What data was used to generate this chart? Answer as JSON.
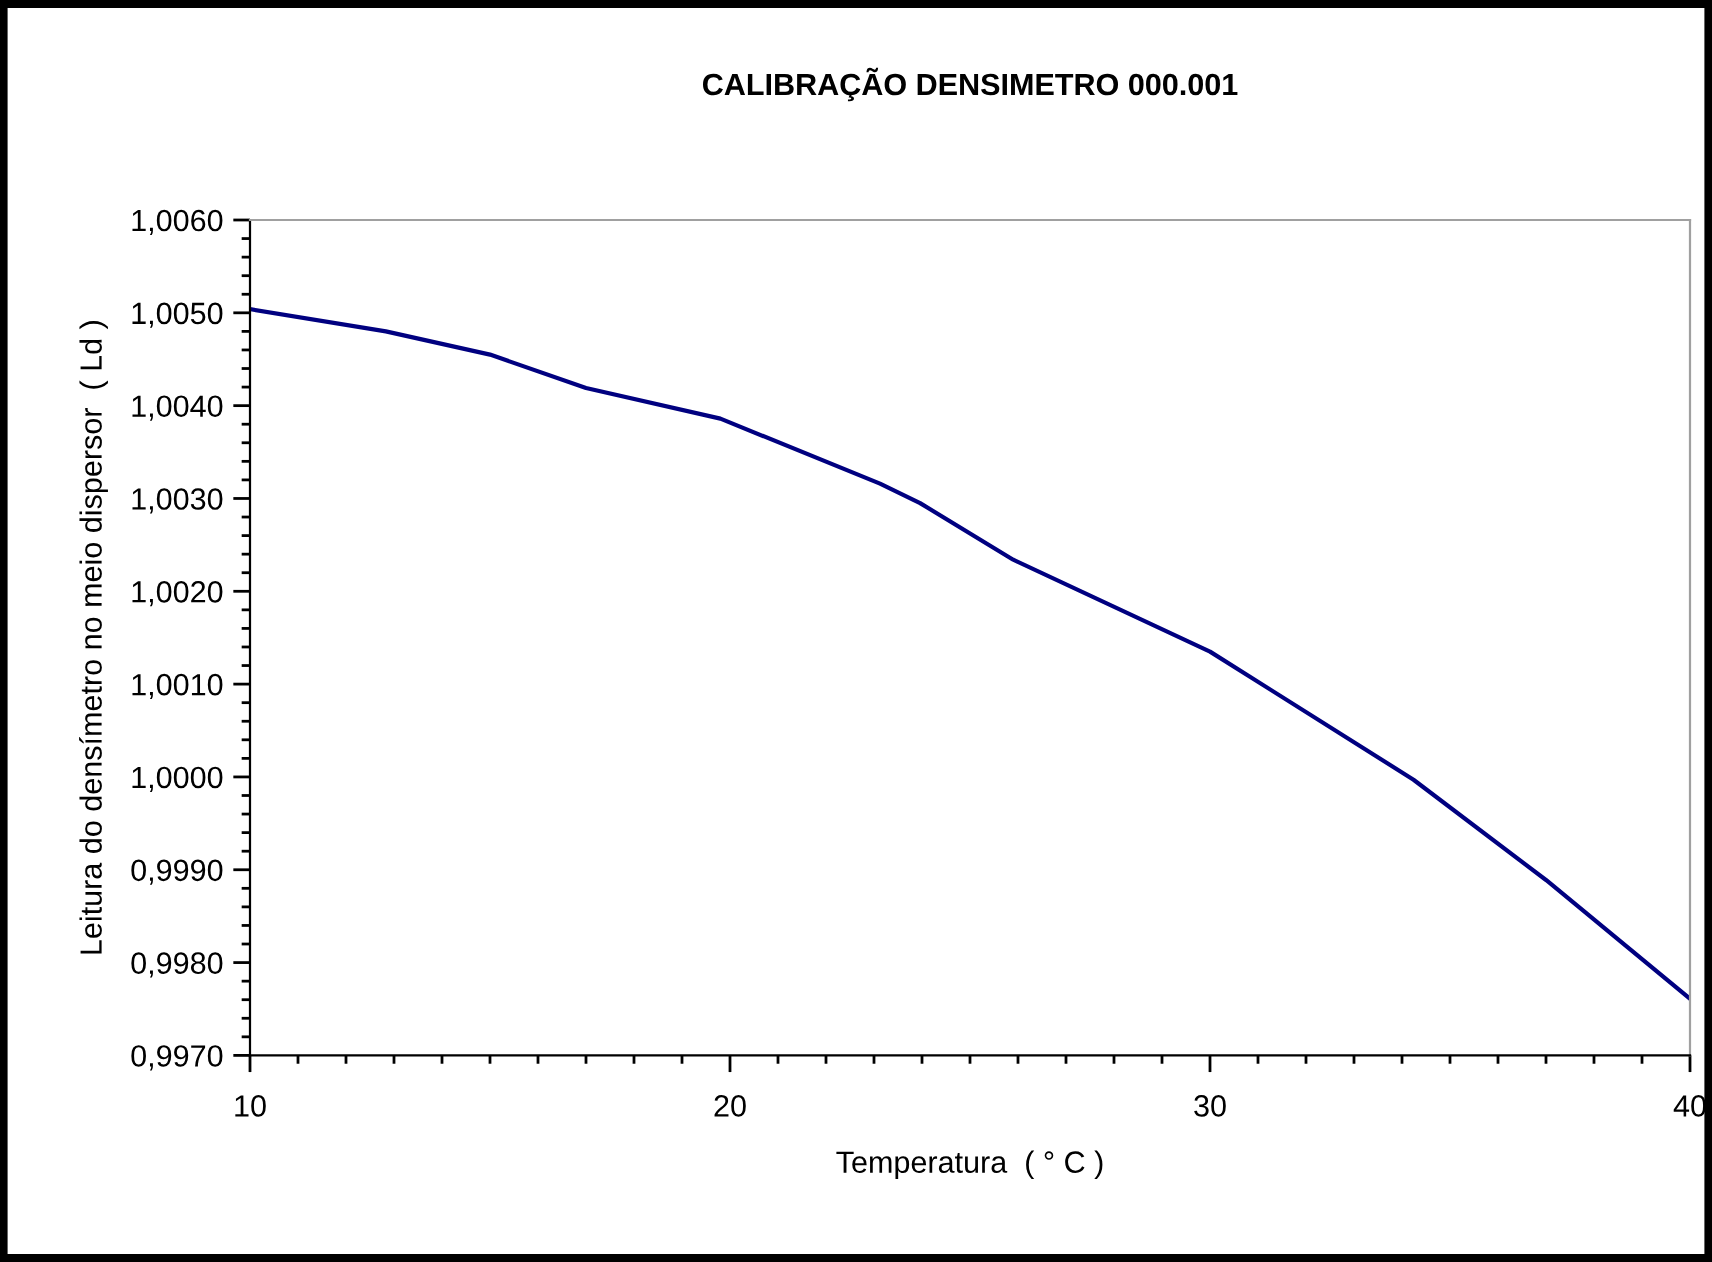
{
  "chart_data": {
    "type": "line",
    "title": "CALIBRAÇÃO DENSIMETRO 000.001",
    "xlabel": "Temperatura  ( ° C )",
    "ylabel": "Leitura do densímetro no meio dispersor  ( Ld )",
    "x": [
      10,
      12.83,
      15,
      17,
      19.8,
      23.125,
      23.96,
      25.9,
      30,
      34.24,
      37,
      40
    ],
    "series": [
      {
        "color": "#000080",
        "values": [
          1.00504,
          1.0048,
          1.00455,
          1.00419,
          1.00386,
          1.00316,
          1.00295,
          1.00234,
          1.00135,
          0.99997,
          0.99889,
          0.99761
        ]
      }
    ],
    "xlim": [
      10,
      40
    ],
    "xticks": [
      10,
      20,
      30,
      40
    ],
    "ylim": [
      0.997,
      1.006
    ],
    "yticks": [
      {
        "value": 0.997,
        "label": "0,9970"
      },
      {
        "value": 0.998,
        "label": "0,9980"
      },
      {
        "value": 0.999,
        "label": "0,9990"
      },
      {
        "value": 1.0,
        "label": "1,0000"
      },
      {
        "value": 1.001,
        "label": "1,0010"
      },
      {
        "value": 1.002,
        "label": "1,0020"
      },
      {
        "value": 1.003,
        "label": "1,0030"
      },
      {
        "value": 1.004,
        "label": "1,0040"
      },
      {
        "value": 1.005,
        "label": "1,0050"
      },
      {
        "value": 1.006,
        "label": "1,0060"
      }
    ],
    "grid": false,
    "legend": false,
    "marker": "none",
    "line_style": "solid"
  }
}
